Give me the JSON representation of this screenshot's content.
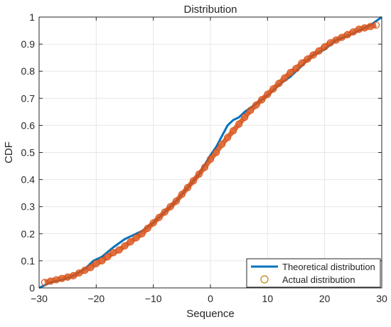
{
  "chart_data": {
    "type": "line",
    "title": "Distribution",
    "xlabel": "Sequence",
    "ylabel": "CDF",
    "xlim": [
      -30,
      30
    ],
    "ylim": [
      0,
      1
    ],
    "xticks": [
      -30,
      -20,
      -10,
      0,
      10,
      20,
      30
    ],
    "xtick_labels": [
      "−30",
      "−20",
      "−10",
      "0",
      "10",
      "20",
      "30"
    ],
    "yticks": [
      0,
      0.1,
      0.2,
      0.3,
      0.4,
      0.5,
      0.6,
      0.7,
      0.8,
      0.9,
      1
    ],
    "ytick_labels": [
      "0",
      "0.1",
      "0.2",
      "0.3",
      "0.4",
      "0.5",
      "0.6",
      "0.7",
      "0.8",
      "0.9",
      "1"
    ],
    "grid": true,
    "legend_position": "bottom-right",
    "colors": {
      "theoretical": "#0072bd",
      "actual": "#d95319",
      "marker_edge": "#b8860b",
      "grid": "#e6e6e6"
    },
    "series": [
      {
        "name": "Theoretical distribution",
        "style": "line",
        "x": [
          -30,
          -28,
          -26,
          -24,
          -22,
          -20.5,
          -19,
          -17,
          -15,
          -13.5,
          -12,
          -10,
          -8,
          -6,
          -4,
          -2,
          0,
          1,
          2,
          3,
          4,
          5,
          6,
          8,
          10,
          12,
          14,
          16,
          18,
          20,
          22,
          24,
          26,
          28,
          29,
          30
        ],
        "y": [
          0.0,
          0.02,
          0.03,
          0.045,
          0.07,
          0.1,
          0.115,
          0.15,
          0.18,
          0.195,
          0.21,
          0.24,
          0.28,
          0.32,
          0.37,
          0.42,
          0.49,
          0.52,
          0.56,
          0.6,
          0.62,
          0.63,
          0.65,
          0.68,
          0.71,
          0.75,
          0.78,
          0.82,
          0.86,
          0.88,
          0.915,
          0.93,
          0.95,
          0.97,
          0.985,
          1.0
        ]
      },
      {
        "name": "Actual distribution",
        "style": "markers",
        "x": [
          -29,
          -28,
          -27,
          -26,
          -25,
          -24,
          -23,
          -22,
          -21,
          -20,
          -19,
          -18,
          -17,
          -16,
          -15,
          -14,
          -13,
          -12,
          -11,
          -10,
          -9,
          -8,
          -7,
          -6,
          -5,
          -4,
          -3,
          -2,
          -1,
          0,
          1,
          2,
          3,
          4,
          5,
          6,
          7,
          8,
          9,
          10,
          11,
          12,
          13,
          14,
          15,
          16,
          17,
          18,
          19,
          20,
          21,
          22,
          23,
          24,
          25,
          26,
          27,
          28,
          29
        ],
        "y": [
          0.02,
          0.025,
          0.03,
          0.035,
          0.04,
          0.045,
          0.055,
          0.065,
          0.075,
          0.09,
          0.1,
          0.115,
          0.13,
          0.14,
          0.155,
          0.17,
          0.185,
          0.2,
          0.22,
          0.24,
          0.26,
          0.28,
          0.3,
          0.32,
          0.345,
          0.37,
          0.395,
          0.42,
          0.445,
          0.475,
          0.5,
          0.53,
          0.555,
          0.58,
          0.605,
          0.63,
          0.655,
          0.675,
          0.695,
          0.715,
          0.735,
          0.755,
          0.775,
          0.795,
          0.81,
          0.83,
          0.845,
          0.86,
          0.875,
          0.89,
          0.905,
          0.915,
          0.925,
          0.935,
          0.945,
          0.955,
          0.96,
          0.965,
          0.97
        ]
      }
    ]
  }
}
